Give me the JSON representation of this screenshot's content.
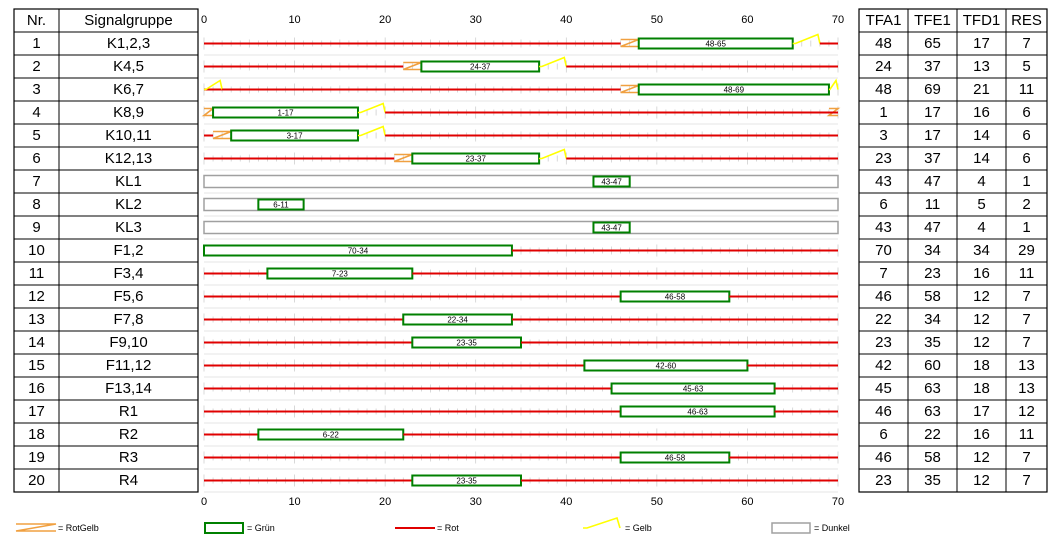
{
  "left_headers": {
    "nr": "Nr.",
    "group": "Signalgruppe"
  },
  "right_headers": [
    "TFA1",
    "TFE1",
    "TFD1",
    "RES"
  ],
  "legend": [
    {
      "key": "rotgelb",
      "label": "= RotGelb"
    },
    {
      "key": "gruen",
      "label": "= Grün"
    },
    {
      "key": "rot",
      "label": "= Rot"
    },
    {
      "key": "gelb",
      "label": "= Gelb"
    },
    {
      "key": "dunkel",
      "label": "= Dunkel"
    }
  ],
  "colors": {
    "rot": "#e00000",
    "gruen": "#008000",
    "gelb": "#ffff00",
    "rotgelb": "#f0a040",
    "dunkel": "#a0a0a0",
    "grid": "#c8c8c8"
  },
  "chart_data": {
    "type": "timeline",
    "cycle": 70,
    "xlim": [
      0,
      70
    ],
    "x_ticks": [
      0,
      10,
      20,
      30,
      40,
      50,
      60,
      70
    ],
    "rows": [
      {
        "nr": "1",
        "name": "K1,2,3",
        "kind": "K",
        "tfa": 48,
        "tfe": 65,
        "tfd": 17,
        "res": 7,
        "label": "48-65"
      },
      {
        "nr": "2",
        "name": "K4,5",
        "kind": "K",
        "tfa": 24,
        "tfe": 37,
        "tfd": 13,
        "res": 5,
        "label": "24-37"
      },
      {
        "nr": "3",
        "name": "K6,7",
        "kind": "K",
        "tfa": 48,
        "tfe": 69,
        "tfd": 21,
        "res": 11,
        "label": "48-69"
      },
      {
        "nr": "4",
        "name": "K8,9",
        "kind": "K",
        "tfa": 1,
        "tfe": 17,
        "tfd": 16,
        "res": 6,
        "label": "1-17"
      },
      {
        "nr": "5",
        "name": "K10,11",
        "kind": "K",
        "tfa": 3,
        "tfe": 17,
        "tfd": 14,
        "res": 6,
        "label": "3-17"
      },
      {
        "nr": "6",
        "name": "K12,13",
        "kind": "K",
        "tfa": 23,
        "tfe": 37,
        "tfd": 14,
        "res": 6,
        "label": "23-37"
      },
      {
        "nr": "7",
        "name": "KL1",
        "kind": "KL",
        "tfa": 43,
        "tfe": 47,
        "tfd": 4,
        "res": 1,
        "label": "43-47"
      },
      {
        "nr": "8",
        "name": "KL2",
        "kind": "KL",
        "tfa": 6,
        "tfe": 11,
        "tfd": 5,
        "res": 2,
        "label": "6-11"
      },
      {
        "nr": "9",
        "name": "KL3",
        "kind": "KL",
        "tfa": 43,
        "tfe": 47,
        "tfd": 4,
        "res": 1,
        "label": "43-47"
      },
      {
        "nr": "10",
        "name": "F1,2",
        "kind": "F",
        "tfa": 70,
        "tfe": 34,
        "tfd": 34,
        "res": 29,
        "label": "70-34"
      },
      {
        "nr": "11",
        "name": "F3,4",
        "kind": "F",
        "tfa": 7,
        "tfe": 23,
        "tfd": 16,
        "res": 11,
        "label": "7-23"
      },
      {
        "nr": "12",
        "name": "F5,6",
        "kind": "F",
        "tfa": 46,
        "tfe": 58,
        "tfd": 12,
        "res": 7,
        "label": "46-58"
      },
      {
        "nr": "13",
        "name": "F7,8",
        "kind": "F",
        "tfa": 22,
        "tfe": 34,
        "tfd": 12,
        "res": 7,
        "label": "22-34"
      },
      {
        "nr": "14",
        "name": "F9,10",
        "kind": "F",
        "tfa": 23,
        "tfe": 35,
        "tfd": 12,
        "res": 7,
        "label": "23-35"
      },
      {
        "nr": "15",
        "name": "F11,12",
        "kind": "F",
        "tfa": 42,
        "tfe": 60,
        "tfd": 18,
        "res": 13,
        "label": "42-60"
      },
      {
        "nr": "16",
        "name": "F13,14",
        "kind": "F",
        "tfa": 45,
        "tfe": 63,
        "tfd": 18,
        "res": 13,
        "label": "45-63"
      },
      {
        "nr": "17",
        "name": "R1",
        "kind": "F",
        "tfa": 46,
        "tfe": 63,
        "tfd": 17,
        "res": 12,
        "label": "46-63"
      },
      {
        "nr": "18",
        "name": "R2",
        "kind": "F",
        "tfa": 6,
        "tfe": 22,
        "tfd": 16,
        "res": 11,
        "label": "6-22"
      },
      {
        "nr": "19",
        "name": "R3",
        "kind": "F",
        "tfa": 46,
        "tfe": 58,
        "tfd": 12,
        "res": 7,
        "label": "46-58"
      },
      {
        "nr": "20",
        "name": "R4",
        "kind": "F",
        "tfa": 23,
        "tfe": 35,
        "tfd": 12,
        "res": 7,
        "label": "23-35"
      }
    ]
  }
}
